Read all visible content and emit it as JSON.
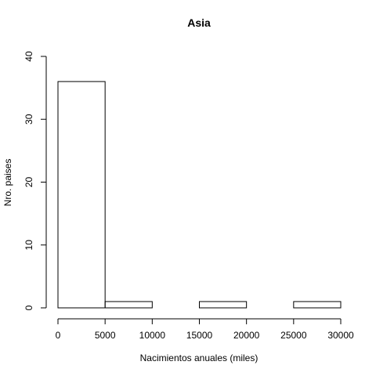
{
  "chart_data": {
    "type": "bar",
    "title": "Asia",
    "xlabel": "Nacimientos anuales (miles)",
    "ylabel": "Nro. paises",
    "bins": [
      {
        "range": [
          0,
          5000
        ],
        "count": 36
      },
      {
        "range": [
          5000,
          10000
        ],
        "count": 1
      },
      {
        "range": [
          10000,
          15000
        ],
        "count": 0
      },
      {
        "range": [
          15000,
          20000
        ],
        "count": 1
      },
      {
        "range": [
          20000,
          25000
        ],
        "count": 0
      },
      {
        "range": [
          25000,
          30000
        ],
        "count": 1
      }
    ],
    "xlim": [
      0,
      30000
    ],
    "ylim": [
      0,
      40
    ],
    "xticks": [
      0,
      5000,
      10000,
      15000,
      20000,
      25000,
      30000
    ],
    "xtick_labels": [
      "0",
      "5000",
      "10000",
      "15000",
      "20000",
      "25000",
      "30000"
    ],
    "yticks": [
      0,
      10,
      20,
      30,
      40
    ],
    "ytick_labels": [
      "0",
      "10",
      "20",
      "30",
      "40"
    ],
    "grid": false,
    "bar_fill": "none",
    "bar_stroke": "#000000"
  }
}
